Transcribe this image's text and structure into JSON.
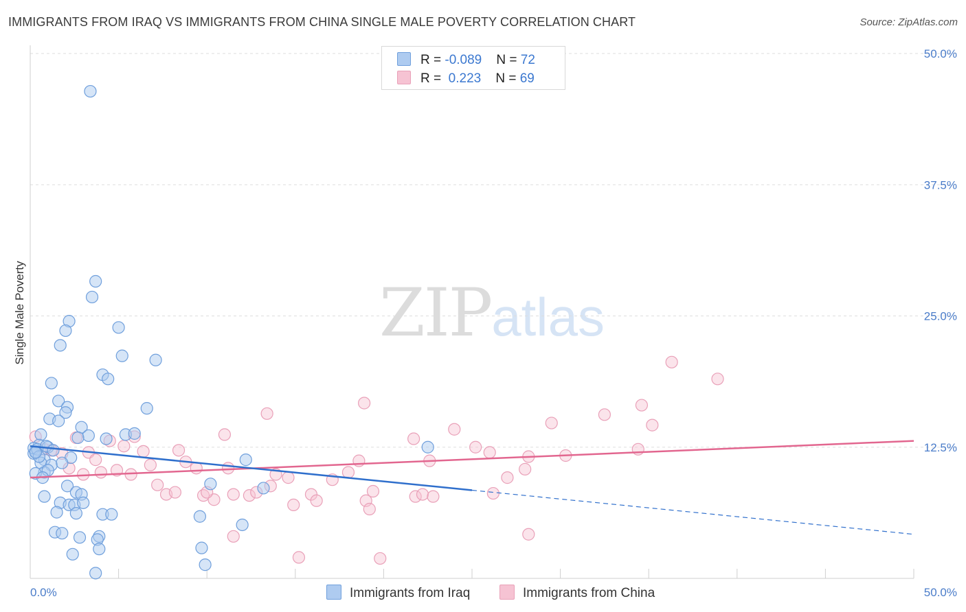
{
  "header": {
    "title": "IMMIGRANTS FROM IRAQ VS IMMIGRANTS FROM CHINA SINGLE MALE POVERTY CORRELATION CHART",
    "source": "Source: ZipAtlas.com"
  },
  "watermark": {
    "zip": "ZIP",
    "atlas": "atlas"
  },
  "legend": {
    "rows": [
      {
        "r_label": "R = ",
        "r_value": "-0.089",
        "n_label": "N = ",
        "n_value": "72"
      },
      {
        "r_label": "R = ",
        "r_value": " 0.223",
        "n_label": "N = ",
        "n_value": "69"
      }
    ]
  },
  "bottom_legend": {
    "iraq": "Immigrants from Iraq",
    "china": "Immigrants from China"
  },
  "colors": {
    "iraq_fill": "#aecbf0",
    "iraq_stroke": "#6f9fdc",
    "iraq_line": "#2f6fcc",
    "china_fill": "#f6c3d3",
    "china_stroke": "#e9a0b8",
    "china_line": "#e2668f",
    "grid": "#dddddd",
    "axis_label": "#4a7cc9"
  },
  "chart_data": {
    "type": "scatter",
    "title": "IMMIGRANTS FROM IRAQ VS IMMIGRANTS FROM CHINA SINGLE MALE POVERTY CORRELATION CHART",
    "xlabel": "",
    "ylabel": "Single Male Poverty",
    "xlim": [
      0,
      50
    ],
    "ylim": [
      0,
      50
    ],
    "y_ticks": [
      12.5,
      25.0,
      37.5,
      50.0
    ],
    "y_tick_labels": [
      "12.5%",
      "25.0%",
      "37.5%",
      "50.0%"
    ],
    "x_tick_labels": [
      "0.0%",
      "50.0%"
    ],
    "legend_position": "top-center",
    "series": [
      {
        "name": "Immigrants from Iraq",
        "r": -0.089,
        "n": 72,
        "trend": {
          "x0": 0,
          "y0": 12.6,
          "x1": 25,
          "y1": 8.4,
          "dashed_to_x": 50,
          "dashed_to_y": 4.2
        },
        "points": [
          [
            3.4,
            46.4
          ],
          [
            3.7,
            28.3
          ],
          [
            3.5,
            26.8
          ],
          [
            2.2,
            24.5
          ],
          [
            5.0,
            23.9
          ],
          [
            2.0,
            23.6
          ],
          [
            1.7,
            22.2
          ],
          [
            5.2,
            21.2
          ],
          [
            7.1,
            20.8
          ],
          [
            4.1,
            19.4
          ],
          [
            4.4,
            19.0
          ],
          [
            1.2,
            18.6
          ],
          [
            1.6,
            16.9
          ],
          [
            2.1,
            16.3
          ],
          [
            6.6,
            16.2
          ],
          [
            2.0,
            15.8
          ],
          [
            1.1,
            15.2
          ],
          [
            1.6,
            15.0
          ],
          [
            2.9,
            14.4
          ],
          [
            0.6,
            13.7
          ],
          [
            3.3,
            13.6
          ],
          [
            2.7,
            13.4
          ],
          [
            5.4,
            13.7
          ],
          [
            4.3,
            13.3
          ],
          [
            5.9,
            13.8
          ],
          [
            0.5,
            12.7
          ],
          [
            1.0,
            12.5
          ],
          [
            0.3,
            12.1
          ],
          [
            0.2,
            11.9
          ],
          [
            0.8,
            11.3
          ],
          [
            2.3,
            11.5
          ],
          [
            0.6,
            11.0
          ],
          [
            1.2,
            10.8
          ],
          [
            1.8,
            11.0
          ],
          [
            0.8,
            10.1
          ],
          [
            1.0,
            10.3
          ],
          [
            0.3,
            10.0
          ],
          [
            0.7,
            9.6
          ],
          [
            12.2,
            11.3
          ],
          [
            10.2,
            9.0
          ],
          [
            13.2,
            8.6
          ],
          [
            2.1,
            8.8
          ],
          [
            2.6,
            8.2
          ],
          [
            2.9,
            8.0
          ],
          [
            0.8,
            7.8
          ],
          [
            1.7,
            7.2
          ],
          [
            2.2,
            7.0
          ],
          [
            2.5,
            7.0
          ],
          [
            3.0,
            7.2
          ],
          [
            1.5,
            6.3
          ],
          [
            2.6,
            6.2
          ],
          [
            4.1,
            6.1
          ],
          [
            4.6,
            6.1
          ],
          [
            9.6,
            5.9
          ],
          [
            12.0,
            5.1
          ],
          [
            1.4,
            4.4
          ],
          [
            1.8,
            4.3
          ],
          [
            2.8,
            3.9
          ],
          [
            3.9,
            4.0
          ],
          [
            3.8,
            3.7
          ],
          [
            3.9,
            2.8
          ],
          [
            9.7,
            2.9
          ],
          [
            2.4,
            2.3
          ],
          [
            9.9,
            1.3
          ],
          [
            3.7,
            0.5
          ],
          [
            22.5,
            12.5
          ],
          [
            0.2,
            12.4
          ],
          [
            0.4,
            12.3
          ],
          [
            0.9,
            12.6
          ],
          [
            1.3,
            12.2
          ],
          [
            0.5,
            11.6
          ],
          [
            0.3,
            12.0
          ]
        ]
      },
      {
        "name": "Immigrants from China",
        "r": 0.223,
        "n": 69,
        "trend": {
          "x0": 0,
          "y0": 9.6,
          "x1": 50,
          "y1": 13.1
        },
        "points": [
          [
            0.3,
            13.5
          ],
          [
            0.8,
            12.3
          ],
          [
            1.2,
            12.2
          ],
          [
            1.8,
            11.9
          ],
          [
            2.6,
            13.4
          ],
          [
            4.5,
            13.1
          ],
          [
            5.9,
            13.5
          ],
          [
            3.3,
            12.0
          ],
          [
            6.4,
            12.1
          ],
          [
            3.7,
            11.3
          ],
          [
            5.3,
            12.6
          ],
          [
            8.4,
            12.2
          ],
          [
            8.8,
            11.1
          ],
          [
            2.2,
            10.5
          ],
          [
            3.0,
            9.9
          ],
          [
            4.0,
            10.1
          ],
          [
            4.9,
            10.3
          ],
          [
            5.7,
            9.9
          ],
          [
            6.8,
            10.8
          ],
          [
            9.4,
            10.5
          ],
          [
            11.2,
            10.5
          ],
          [
            13.9,
            9.9
          ],
          [
            14.6,
            9.6
          ],
          [
            17.1,
            9.4
          ],
          [
            18.0,
            10.1
          ],
          [
            18.6,
            11.2
          ],
          [
            7.2,
            8.9
          ],
          [
            7.7,
            8.0
          ],
          [
            8.2,
            8.2
          ],
          [
            9.8,
            7.9
          ],
          [
            10.4,
            7.5
          ],
          [
            11.5,
            8.0
          ],
          [
            12.4,
            7.9
          ],
          [
            12.8,
            8.2
          ],
          [
            13.6,
            8.8
          ],
          [
            15.9,
            8.0
          ],
          [
            16.2,
            7.4
          ],
          [
            14.9,
            7.0
          ],
          [
            19.4,
            8.3
          ],
          [
            19.0,
            7.4
          ],
          [
            19.2,
            6.6
          ],
          [
            21.8,
            7.8
          ],
          [
            22.2,
            8.0
          ],
          [
            22.8,
            7.8
          ],
          [
            26.2,
            8.1
          ],
          [
            25.2,
            12.5
          ],
          [
            26.0,
            12.0
          ],
          [
            22.6,
            11.2
          ],
          [
            28.2,
            11.6
          ],
          [
            30.3,
            11.7
          ],
          [
            27.0,
            9.6
          ],
          [
            28.0,
            10.4
          ],
          [
            34.4,
            12.3
          ],
          [
            38.9,
            19.0
          ],
          [
            32.5,
            15.6
          ],
          [
            36.3,
            20.6
          ],
          [
            34.6,
            16.5
          ],
          [
            35.2,
            14.6
          ],
          [
            29.5,
            14.8
          ],
          [
            24.0,
            14.2
          ],
          [
            28.2,
            4.2
          ],
          [
            15.2,
            2.0
          ],
          [
            19.8,
            1.9
          ],
          [
            11.5,
            4.0
          ],
          [
            10.0,
            8.2
          ],
          [
            21.7,
            13.3
          ],
          [
            18.9,
            16.7
          ],
          [
            13.4,
            15.7
          ],
          [
            11.0,
            13.7
          ]
        ]
      }
    ]
  }
}
